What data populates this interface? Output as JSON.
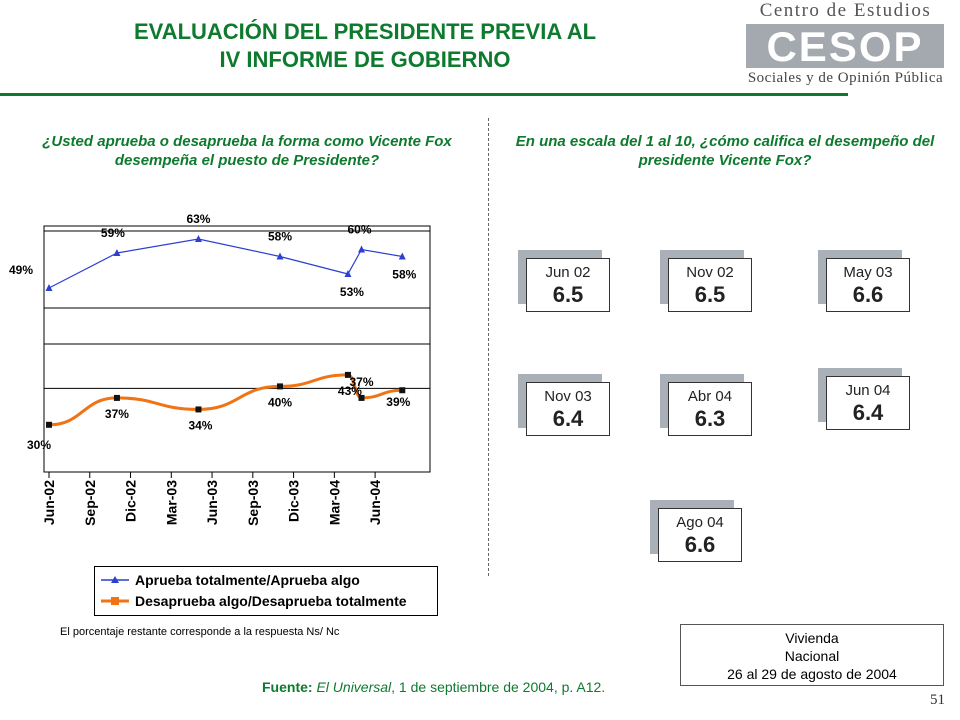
{
  "header": {
    "title_line1": "EVALUACIÓN DEL PRESIDENTE PREVIA AL",
    "title_line2": "IV INFORME DE GOBIERNO",
    "logo_top": "Centro de Estudios",
    "logo_mark": "CESOP",
    "logo_bottom": "Sociales y de Opinión Pública"
  },
  "left": {
    "question": "¿Usted aprueba o desaprueba la forma como Vicente Fox desempeña el puesto de Presidente?",
    "note": "El porcentaje restante corresponde a la respuesta Ns/ Nc"
  },
  "right": {
    "question": "En una escala del 1 al 10, ¿cómo califica el desempeño del presidente Vicente Fox?"
  },
  "ratings": [
    {
      "label": "Jun 02",
      "value": "6.5"
    },
    {
      "label": "Nov 02",
      "value": "6.5"
    },
    {
      "label": "May 03",
      "value": "6.6"
    },
    {
      "label": "Nov 03",
      "value": "6.4"
    },
    {
      "label": "Abr 04",
      "value": "6.3"
    },
    {
      "label": "Jun 04",
      "value": "6.4"
    },
    {
      "label": "Ago 04",
      "value": "6.6"
    }
  ],
  "vivienda": {
    "line1": "Vivienda",
    "line2": "Nacional",
    "line3": "26 al 29 de agosto de 2004"
  },
  "fuente": {
    "label": "Fuente:",
    "source": "El Universal",
    "rest": ", 1 de septiembre de 2004, p. A12."
  },
  "page_number": "51",
  "colors": {
    "green": "#0e7a2e",
    "approve": "#2c3fd1",
    "disapprove": "#f07314"
  },
  "chart_data": {
    "type": "line",
    "x_ticks": [
      "Jun-02",
      "Sep-02",
      "Dic-02",
      "Mar-03",
      "Jun-03",
      "Sep-03",
      "Dic-03",
      "Mar-04",
      "Jun-04"
    ],
    "series": [
      {
        "name": "Aprueba totalmente/Aprueba algo",
        "color": "#2c3fd1",
        "x": [
          "Jun-02",
          "Nov-02",
          "May-03",
          "Nov-03",
          "Abr-04",
          "May-04",
          "Ago-04"
        ],
        "values": [
          49,
          59,
          63,
          58,
          53,
          60,
          58
        ],
        "labels": [
          "49%",
          "59%",
          "63%",
          "58%",
          "53%",
          "60%",
          "58%"
        ]
      },
      {
        "name": "Desaprueba algo/Desaprueba totalmente",
        "color": "#f07314",
        "x": [
          "Jun-02",
          "Nov-02",
          "May-03",
          "Nov-03",
          "Abr-04",
          "May-04",
          "Ago-04"
        ],
        "values": [
          30,
          37,
          34,
          40,
          43,
          37,
          39
        ],
        "labels": [
          "30%",
          "37%",
          "34%",
          "40%",
          "43%",
          "37%",
          "39%"
        ]
      }
    ],
    "legend_position": "bottom"
  }
}
